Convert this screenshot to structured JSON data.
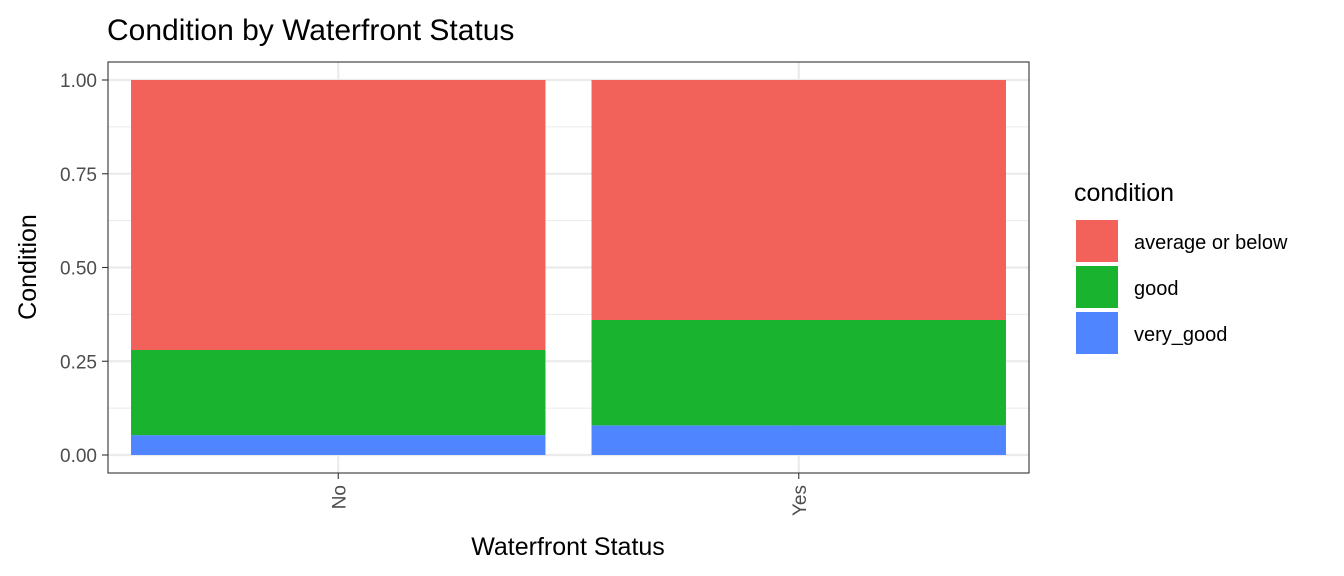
{
  "chart_data": {
    "type": "bar",
    "stacked": true,
    "title": "Condition by Waterfront Status",
    "xlabel": "Waterfront Status",
    "ylabel": "Condition",
    "categories": [
      "No",
      "Yes"
    ],
    "ylim": [
      0,
      1
    ],
    "yticks": [
      "0.00",
      "0.25",
      "0.50",
      "0.75",
      "1.00"
    ],
    "ytick_values": [
      0,
      0.25,
      0.5,
      0.75,
      1.0
    ],
    "grid": true,
    "legend": {
      "title": "condition",
      "position": "right"
    },
    "series": [
      {
        "name": "very_good",
        "color": "#4f86ff",
        "values": [
          0.053,
          0.079
        ]
      },
      {
        "name": "good",
        "color": "#1ab330",
        "values": [
          0.227,
          0.281
        ]
      },
      {
        "name": "average or below",
        "color": "#f2625b",
        "values": [
          0.72,
          0.64
        ]
      }
    ]
  }
}
